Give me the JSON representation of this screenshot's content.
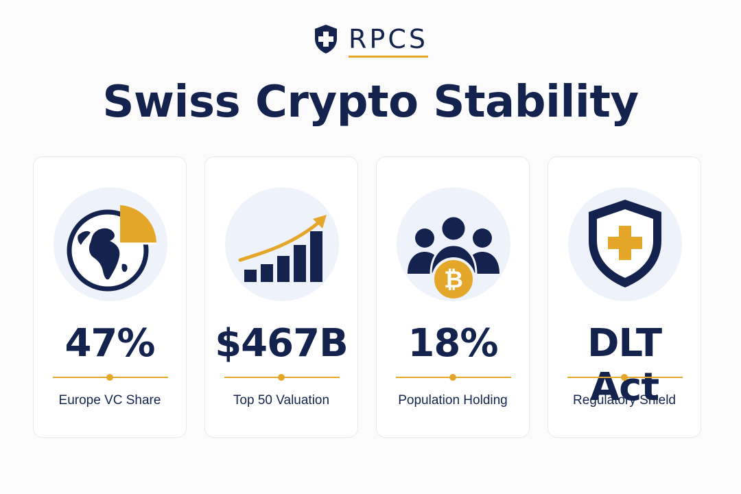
{
  "brand": {
    "name": "RPCS"
  },
  "title": "Swiss Crypto Stability",
  "colors": {
    "navy": "#13234d",
    "gold": "#e4a72a",
    "icon_bg": "#eef3fb"
  },
  "cards": [
    {
      "icon": "globe-pie-icon",
      "value": "47%",
      "label": "Europe VC Share"
    },
    {
      "icon": "growth-chart-icon",
      "value": "$467B",
      "label": "Top 50 Valuation"
    },
    {
      "icon": "people-bitcoin-icon",
      "value": "18%",
      "label": "Population Holding"
    },
    {
      "icon": "shield-cross-icon",
      "value": "DLT Act",
      "label": "Regulatory Shield"
    }
  ]
}
